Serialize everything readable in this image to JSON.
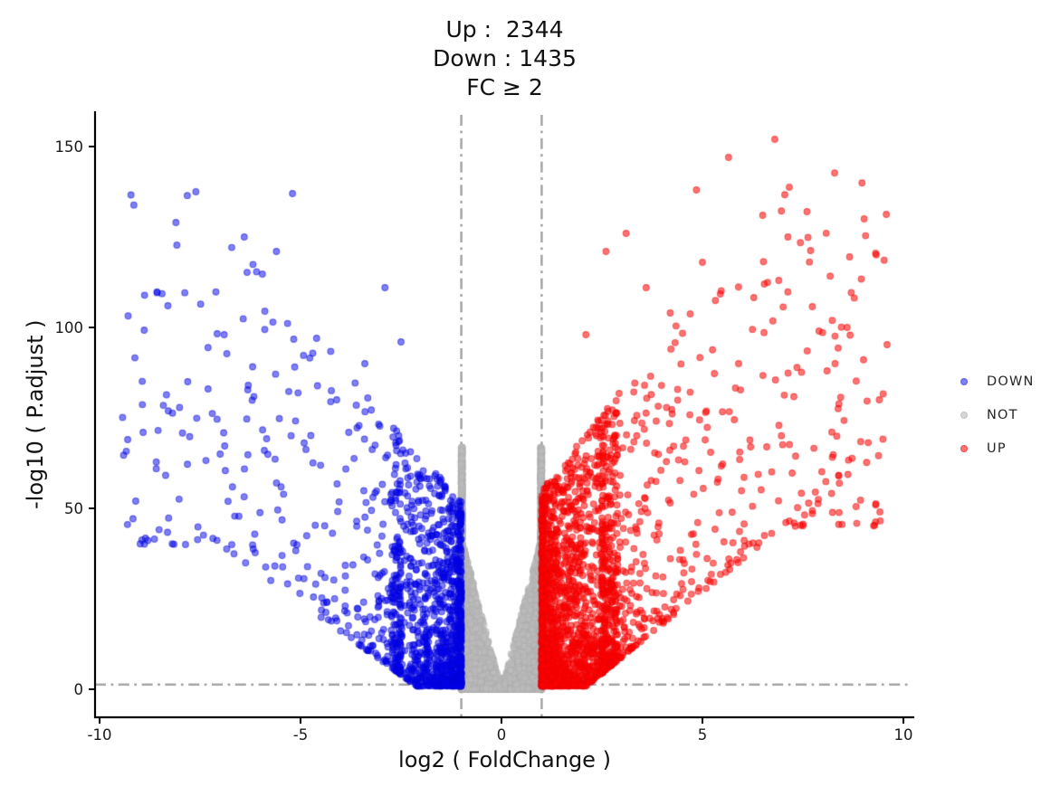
{
  "chart_data": {
    "type": "scatter",
    "variant": "volcano-plot",
    "title_lines": [
      "Up :  2344",
      "Down : 1435",
      "FC ≥ 2"
    ],
    "summary": {
      "up_count": 2344,
      "down_count": 1435,
      "not_significant_shown": true,
      "fold_change_rule": "FC ≥ 2"
    },
    "xlabel": "log2 ( FoldChange )",
    "ylabel": "-log10 ( P.adjust )",
    "x_ticks": [
      "-10",
      "-5",
      "0",
      "5",
      "10"
    ],
    "x_tick_values": [
      -10,
      -5,
      0,
      5,
      10
    ],
    "y_ticks": [
      "0",
      "50",
      "100",
      "150"
    ],
    "y_tick_values": [
      0,
      50,
      100,
      150
    ],
    "xlim": [
      -10.2,
      10.3
    ],
    "ylim": [
      -7.75,
      160
    ],
    "grid": false,
    "legend_position": "right-center",
    "axis_color": "#000000",
    "tick_label_color": "#1a1a1a",
    "threshold_lines": {
      "vertical_x": [
        -1,
        1
      ],
      "horizontal_y": 1.301,
      "color": "#ACACAC",
      "style": "dash-dot"
    },
    "point_radius": 3.4,
    "seed": 13,
    "series": [
      {
        "name": "NOT",
        "color": "#BCBCBC",
        "fill_alpha": 0.6,
        "edge_color": "#ADADAD",
        "edge_alpha": 0.5,
        "count": 5600,
        "gen": {
          "kind": "center",
          "bottom_frac": 0.16,
          "bottom_ymax": 3.2,
          "bottom_pow": 2.3,
          "env_max": 67,
          "env_pow": 2.8,
          "edge_slope": 42,
          "edge_pow": 1.55
        }
      },
      {
        "name": "DOWN",
        "color": "#0000F0",
        "fill_alpha": 0.5,
        "edge_color": "#0000D0",
        "edge_alpha": 0.5,
        "count": 1435,
        "gen": {
          "kind": "side",
          "side": -1,
          "near_frac": 0.75,
          "near_span": 1.75,
          "near_pow": 2.1,
          "far_base": 1.5,
          "far_span": 7.0,
          "far_pow": 2.4,
          "ymax_base": 52,
          "ymax_slope": 13,
          "ymax_cap": 140,
          "ymin_start": 1.0,
          "ymin_slope": 8,
          "ymin_max": 40,
          "y_pow": 2.1,
          "y_floor": 0.9
        }
      },
      {
        "name": "UP",
        "color": "#FF0000",
        "fill_alpha": 0.55,
        "edge_color": "#E80000",
        "edge_alpha": 0.5,
        "count": 2344,
        "gen": {
          "kind": "side",
          "side": 1,
          "near_frac": 0.75,
          "near_span": 1.9,
          "near_pow": 2.1,
          "far_base": 1.5,
          "far_span": 7.1,
          "far_pow": 2.6,
          "ymax_base": 55,
          "ymax_slope": 14,
          "ymax_cap": 150,
          "ymin_start": 1.0,
          "ymin_slope": 9,
          "ymin_max": 45,
          "y_pow": 2.1,
          "y_floor": 0.9
        }
      }
    ],
    "outliers": {
      "UP": [
        [
          6.8,
          152
        ],
        [
          5.65,
          147
        ],
        [
          4.85,
          138
        ],
        [
          7.6,
          132
        ],
        [
          6.5,
          131
        ],
        [
          3.1,
          126
        ],
        [
          2.6,
          121
        ],
        [
          5.0,
          118
        ],
        [
          6.9,
          113
        ],
        [
          3.6,
          111
        ],
        [
          4.2,
          104
        ],
        [
          8.6,
          100
        ],
        [
          7.9,
          99
        ],
        [
          2.1,
          98
        ],
        [
          5.9,
          90
        ],
        [
          8.3,
          90
        ],
        [
          8.1,
          88
        ],
        [
          9.4,
          80
        ],
        [
          6.2,
          67
        ],
        [
          6.6,
          67
        ]
      ],
      "DOWN": [
        [
          -5.2,
          137
        ],
        [
          -8.1,
          129
        ],
        [
          -6.4,
          125
        ],
        [
          -5.6,
          121
        ],
        [
          -2.9,
          111
        ],
        [
          -8.3,
          106
        ],
        [
          -6.9,
          98
        ],
        [
          -4.6,
          97
        ],
        [
          -2.5,
          96
        ],
        [
          -3.4,
          90
        ],
        [
          -6.3,
          84
        ],
        [
          -7.3,
          83
        ],
        [
          -4.1,
          80
        ],
        [
          -3.8,
          71
        ],
        [
          -9.3,
          69
        ],
        [
          -5.9,
          66
        ],
        [
          -7.0,
          65
        ],
        [
          -9.1,
          52
        ]
      ]
    },
    "legend": [
      {
        "label": "DOWN",
        "swatch_fill": "#7F7FF7",
        "swatch_ring": "#6B6BE8"
      },
      {
        "label": "NOT",
        "swatch_fill": "#D6D6D6",
        "swatch_ring": "#C7C7C7"
      },
      {
        "label": "UP",
        "swatch_fill": "#FF7373",
        "swatch_ring": "#F25A5A"
      }
    ]
  }
}
